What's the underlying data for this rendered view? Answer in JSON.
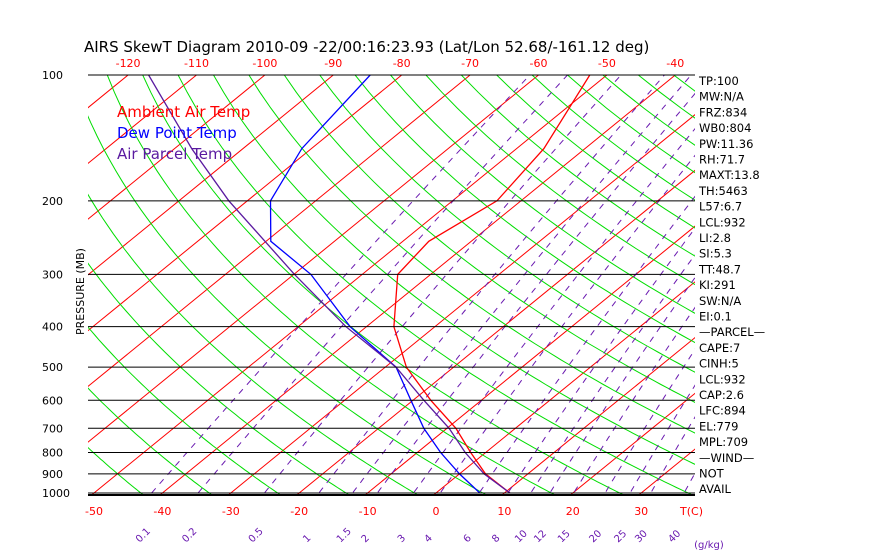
{
  "chart_data": {
    "type": "line",
    "subtype": "skew-t",
    "title": "AIRS SkewT Diagram 2010-09 -22/00:16:23.93 (Lat/Lon 52.68/-161.12 deg)",
    "ylabel": "PRESSURE (MB)",
    "xlabel": "T(C)",
    "mixing_ratio_unit": "(g/kg)",
    "pressure_ticks": [
      100,
      200,
      300,
      400,
      500,
      600,
      700,
      800,
      900,
      1000
    ],
    "bottom_temp_ticks": [
      -50,
      -40,
      -30,
      -20,
      -10,
      0,
      10,
      20,
      30
    ],
    "top_temp_ticks": [
      -120,
      -110,
      -100,
      -90,
      -80,
      -70,
      -60,
      -50,
      -40
    ],
    "mixing_ratio_ticks": [
      "0.1",
      "0.2",
      "0.5",
      "1",
      "1.5",
      "2",
      "3",
      "4",
      "6",
      "8",
      "10",
      "12",
      "15",
      "20",
      "25",
      "30",
      "40"
    ],
    "ylim": [
      1000,
      100
    ],
    "legend": [
      {
        "label": "Ambient Air Temp",
        "color": "#ff0000"
      },
      {
        "label": "Dew Point Temp",
        "color": "#0000ff"
      },
      {
        "label": "Air Parcel Temp",
        "color": "#5a1aa0"
      }
    ],
    "series": [
      {
        "name": "Ambient Air Temp",
        "color": "#ff0000",
        "points": [
          [
            1000,
            10.8
          ],
          [
            900,
            3.8
          ],
          [
            800,
            -2.2
          ],
          [
            700,
            -8.7
          ],
          [
            600,
            -17.4
          ],
          [
            500,
            -26.9
          ],
          [
            400,
            -36
          ],
          [
            300,
            -44.8
          ],
          [
            250,
            -46.2
          ],
          [
            200,
            -43.5
          ],
          [
            150,
            -46
          ],
          [
            100,
            -52.5
          ]
        ]
      },
      {
        "name": "Dew Point Temp",
        "color": "#0000ff",
        "points": [
          [
            1000,
            6.4
          ],
          [
            900,
            0
          ],
          [
            800,
            -6.6
          ],
          [
            700,
            -13.4
          ],
          [
            600,
            -20.3
          ],
          [
            500,
            -28.4
          ],
          [
            400,
            -42.4
          ],
          [
            300,
            -57.5
          ],
          [
            250,
            -69.3
          ],
          [
            200,
            -76.6
          ],
          [
            150,
            -81.4
          ],
          [
            100,
            -84.6
          ]
        ]
      },
      {
        "name": "Air Parcel Temp",
        "color": "#5a1aa0",
        "points": [
          [
            1000,
            10.8
          ],
          [
            900,
            3.6
          ],
          [
            800,
            -3
          ],
          [
            700,
            -9.7
          ],
          [
            600,
            -18.4
          ],
          [
            500,
            -28.4
          ],
          [
            400,
            -43
          ],
          [
            300,
            -59.9
          ],
          [
            200,
            -82.7
          ],
          [
            150,
            -97.5
          ],
          [
            100,
            -117
          ]
        ]
      }
    ],
    "indices": [
      "TP:100",
      "MW:N/A",
      "FRZ:834",
      "WB0:804",
      "PW:11.36",
      "RH:71.7",
      "MAXT:13.8",
      "TH:5463",
      "L57:6.7",
      "LCL:932",
      "LI:2.8",
      "SI:5.3",
      "TT:48.7",
      "KI:291",
      "SW:N/A",
      "EI:0.1",
      "—PARCEL—",
      "CAPE:7",
      "CINH:5",
      "LCL:932",
      "CAP:2.6",
      "LFC:894",
      "EL:779",
      "MPL:709",
      "—WIND—",
      "NOT",
      "AVAIL"
    ],
    "colors": {
      "isotherm": "#ff0000",
      "dry_adiabat": "#00dd00",
      "mixing_ratio": "#6a1ab0",
      "text": "#000000"
    }
  }
}
